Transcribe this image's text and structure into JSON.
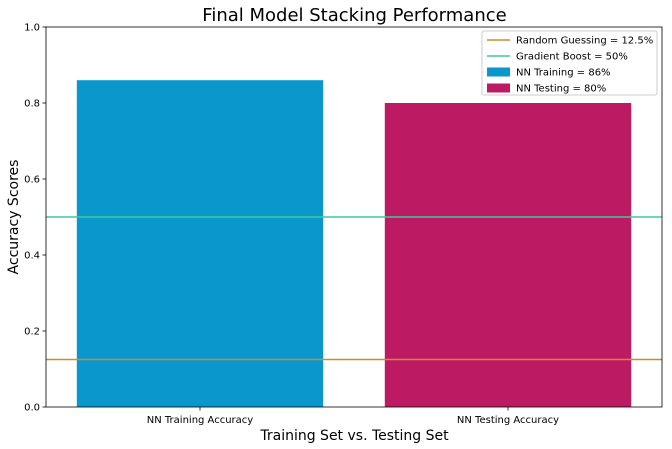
{
  "chart_data": {
    "type": "bar",
    "title": "Final Model Stacking Performance",
    "xlabel": "Training Set vs. Testing Set",
    "ylabel": "Accuracy Scores",
    "ylim": [
      0,
      1.0
    ],
    "yticks": [
      "0.0",
      "0.2",
      "0.4",
      "0.6",
      "0.8",
      "1.0"
    ],
    "categories": [
      "NN Training Accuracy",
      "NN Testing Accuracy"
    ],
    "values": [
      0.86,
      0.8
    ],
    "bar_colors": [
      "#0a97cc",
      "#bc1a62"
    ],
    "hlines": [
      {
        "name": "Random Guessing = 12.5%",
        "value": 0.125,
        "color": "#d08a2b"
      },
      {
        "name": "Gradient Boost = 50%",
        "value": 0.5,
        "color": "#3ccc9a"
      }
    ],
    "legend": {
      "placement": "top-right",
      "entries": [
        {
          "label": "Random Guessing = 12.5%",
          "kind": "line",
          "color": "#d08a2b"
        },
        {
          "label": "Gradient Boost = 50%",
          "kind": "line",
          "color": "#3ccc9a"
        },
        {
          "label": "NN Training = 86%",
          "kind": "patch",
          "color": "#0a97cc"
        },
        {
          "label": "NN Testing = 80%",
          "kind": "patch",
          "color": "#bc1a62"
        }
      ]
    },
    "grid": false
  }
}
